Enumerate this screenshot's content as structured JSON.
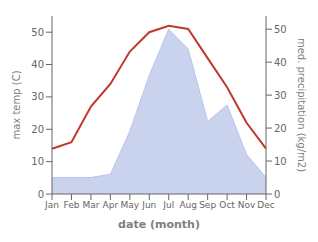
{
  "chart_data": {
    "type": "line",
    "categories": [
      "Jan",
      "Feb",
      "Mar",
      "Apr",
      "May",
      "Jun",
      "Jul",
      "Aug",
      "Sep",
      "Oct",
      "Nov",
      "Dec"
    ],
    "xlabel": "date (month)",
    "ylabel": "max temp (C)",
    "y2label": "med. precipitation (kg/m2)",
    "series": [
      {
        "type": "area",
        "axis": "y2",
        "color": "#b8c4e8",
        "values": [
          5,
          5,
          5,
          6,
          19,
          36,
          50,
          44,
          22,
          27,
          12,
          5
        ]
      },
      {
        "type": "line",
        "color": "#c0392b",
        "values": [
          14,
          16,
          27,
          34,
          44,
          50,
          52,
          51,
          42,
          33,
          22,
          14
        ]
      }
    ],
    "ylim": [
      0,
      55
    ],
    "yticks": [
      0,
      10,
      20,
      30,
      40,
      50
    ],
    "y2lim": [
      0,
      54
    ],
    "y2ticks": [
      0,
      10,
      20,
      30,
      40,
      50
    ],
    "grid": false
  }
}
